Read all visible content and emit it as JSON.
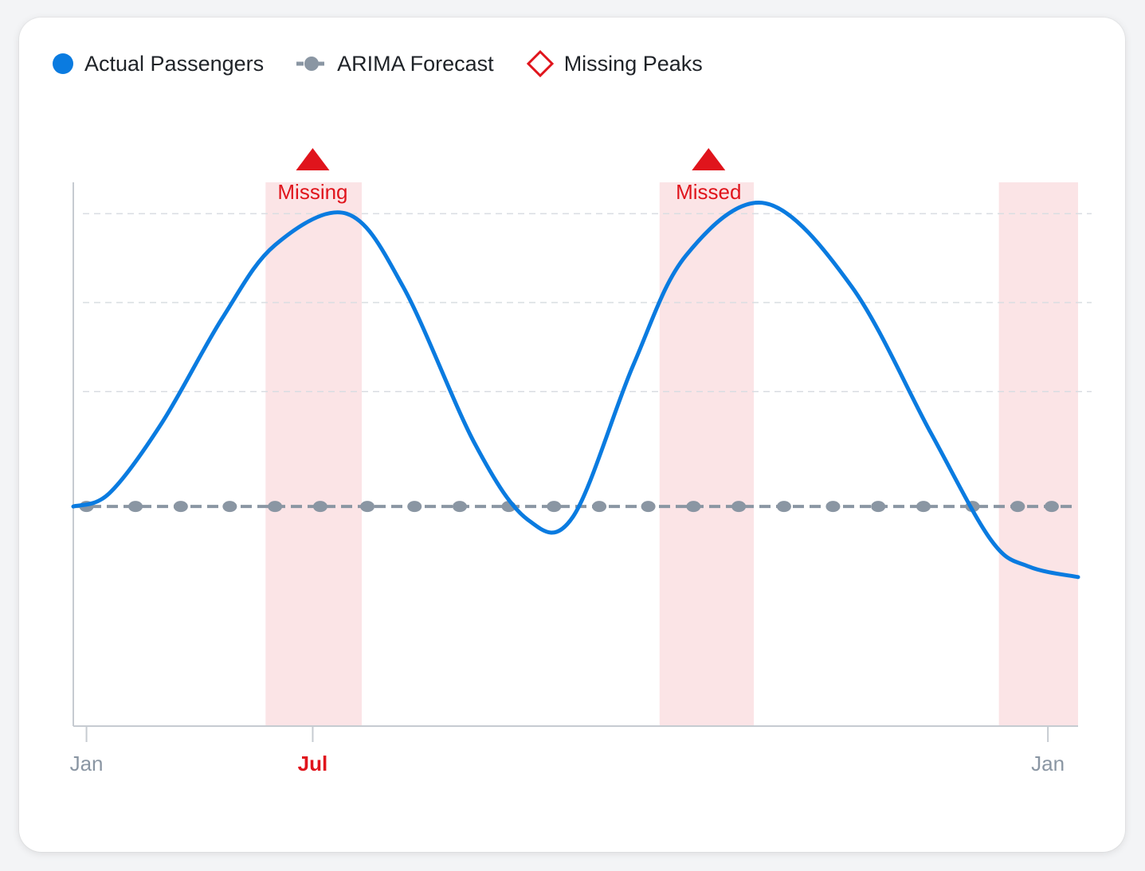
{
  "legend": {
    "actual": "Actual Passengers",
    "forecast": "ARIMA Forecast",
    "missing": "Missing Peaks"
  },
  "colors": {
    "actual": "#0a7be0",
    "forecast": "#8a96a3",
    "missing": "#e0141c",
    "band": "#fbe4e6",
    "grid": "#d9dde2",
    "axis": "#c6cbd1",
    "tick_label": "#8a96a3"
  },
  "chart_data": {
    "type": "line",
    "x_tick_labels": [
      {
        "label": "Jan",
        "x": 0,
        "highlight": false
      },
      {
        "label": "Jul",
        "x": 6,
        "highlight": true
      },
      {
        "label": "Jan",
        "x": 25.5,
        "highlight": false
      }
    ],
    "xlim": [
      -0.35,
      26.3
    ],
    "ylim": [
      -3.2,
      7.2
    ],
    "grid_y": [
      3.2,
      4.9,
      6.6
    ],
    "actual_points": [
      [
        -0.35,
        1.0
      ],
      [
        0.6,
        1.25
      ],
      [
        2.0,
        2.6
      ],
      [
        3.6,
        4.6
      ],
      [
        5.0,
        6.0
      ],
      [
        6.9,
        6.6
      ],
      [
        8.4,
        5.2
      ],
      [
        10.3,
        2.2
      ],
      [
        11.7,
        0.75
      ],
      [
        12.9,
        0.8
      ],
      [
        14.5,
        3.7
      ],
      [
        15.9,
        5.8
      ],
      [
        18.0,
        6.8
      ],
      [
        20.3,
        5.2
      ],
      [
        22.4,
        2.4
      ],
      [
        24.0,
        0.35
      ],
      [
        25.0,
        -0.15
      ],
      [
        26.3,
        -0.35
      ]
    ],
    "forecast": {
      "value": 1.0,
      "dot_x": [
        0,
        1.3,
        2.5,
        3.8,
        5.0,
        6.2,
        7.45,
        8.7,
        9.9,
        11.2,
        12.4,
        13.6,
        14.9,
        16.1,
        17.3,
        18.5,
        19.8,
        21.0,
        22.2,
        23.5,
        24.7,
        25.6
      ]
    },
    "missing_bands": [
      {
        "from": 4.75,
        "to": 7.3,
        "label": "Missing",
        "marker_x": 6.0
      },
      {
        "from": 15.2,
        "to": 17.7,
        "label": "Missed",
        "marker_x": 16.5
      },
      {
        "from": 24.2,
        "to": 26.3,
        "label": "",
        "marker_x": null
      }
    ]
  }
}
